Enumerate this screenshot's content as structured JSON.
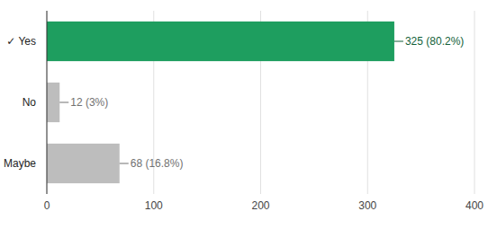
{
  "chart_data": {
    "type": "bar",
    "orientation": "horizontal",
    "categories": [
      "✓ Yes",
      "No",
      "Maybe"
    ],
    "values": [
      325,
      12,
      68
    ],
    "value_labels": [
      "325 (80.2%)",
      "12 (3%)",
      "68 (16.8%)"
    ],
    "colors": [
      "#1e9e5f",
      "#bdbdbd",
      "#bdbdbd"
    ],
    "xlim": [
      0,
      400
    ],
    "xticks": [
      0,
      100,
      200,
      300,
      400
    ],
    "grid": true,
    "data_labels": true
  }
}
